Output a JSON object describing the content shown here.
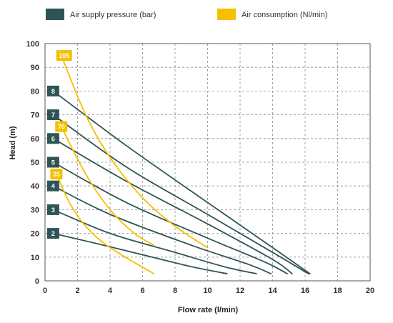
{
  "chart_data": {
    "type": "line",
    "xlabel": "Flow rate (l/min)",
    "ylabel": "Head (m)",
    "xlim": [
      0,
      20
    ],
    "ylim": [
      0,
      100
    ],
    "xticks": [
      "0",
      "2",
      "4",
      "6",
      "8",
      "10",
      "12",
      "14",
      "16",
      "18",
      "20"
    ],
    "yticks": [
      "0",
      "10",
      "20",
      "30",
      "40",
      "50",
      "60",
      "70",
      "80",
      "90",
      "100"
    ],
    "grid": true,
    "legend": {
      "position": "top",
      "entries": [
        {
          "label": "Air supply pressure (bar)",
          "color": "#2e5555"
        },
        {
          "label": "Air consumption (Nl/min)",
          "color": "#f5c000"
        }
      ]
    },
    "pressure_series": [
      {
        "label": "2",
        "color": "#2e5555",
        "points": [
          [
            0.5,
            20
          ],
          [
            3,
            16
          ],
          [
            6,
            11
          ],
          [
            9,
            6
          ],
          [
            11.2,
            3
          ]
        ]
      },
      {
        "label": "3",
        "color": "#2e5555",
        "points": [
          [
            0.5,
            30
          ],
          [
            4,
            20
          ],
          [
            8,
            12
          ],
          [
            11,
            6
          ],
          [
            13,
            3
          ]
        ]
      },
      {
        "label": "4",
        "color": "#2e5555",
        "points": [
          [
            0.5,
            40
          ],
          [
            4,
            28
          ],
          [
            9,
            15
          ],
          [
            12.5,
            7
          ],
          [
            13.9,
            3
          ]
        ]
      },
      {
        "label": "5",
        "color": "#2e5555",
        "points": [
          [
            0.5,
            50
          ],
          [
            5,
            33
          ],
          [
            10,
            18
          ],
          [
            13.5,
            8
          ],
          [
            14.9,
            3
          ]
        ]
      },
      {
        "label": "6",
        "color": "#2e5555",
        "points": [
          [
            0.5,
            60
          ],
          [
            5,
            42
          ],
          [
            10,
            24
          ],
          [
            14,
            9
          ],
          [
            15.2,
            3
          ]
        ]
      },
      {
        "label": "7",
        "color": "#2e5555",
        "points": [
          [
            0.5,
            70
          ],
          [
            5,
            48
          ],
          [
            10,
            28
          ],
          [
            14,
            12
          ],
          [
            16.2,
            3
          ]
        ]
      },
      {
        "label": "8",
        "color": "#2e5555",
        "points": [
          [
            0.5,
            80
          ],
          [
            5,
            57
          ],
          [
            10,
            33
          ],
          [
            14,
            14
          ],
          [
            16.3,
            3
          ]
        ]
      }
    ],
    "consumption_series": [
      {
        "label": "35",
        "color": "#f5c000",
        "points": [
          [
            0.7,
            45
          ],
          [
            1.5,
            33
          ],
          [
            2.5,
            23
          ],
          [
            4,
            14
          ],
          [
            6.7,
            3
          ]
        ]
      },
      {
        "label": "70",
        "color": "#f5c000",
        "points": [
          [
            1,
            65
          ],
          [
            2.5,
            45
          ],
          [
            4,
            30
          ],
          [
            5.5,
            20
          ],
          [
            6.7,
            15
          ]
        ]
      },
      {
        "label": "105",
        "color": "#f5c000",
        "points": [
          [
            1,
            95
          ],
          [
            2.5,
            70
          ],
          [
            4,
            52
          ],
          [
            6,
            35
          ],
          [
            8,
            23
          ],
          [
            10,
            14
          ]
        ]
      }
    ]
  }
}
